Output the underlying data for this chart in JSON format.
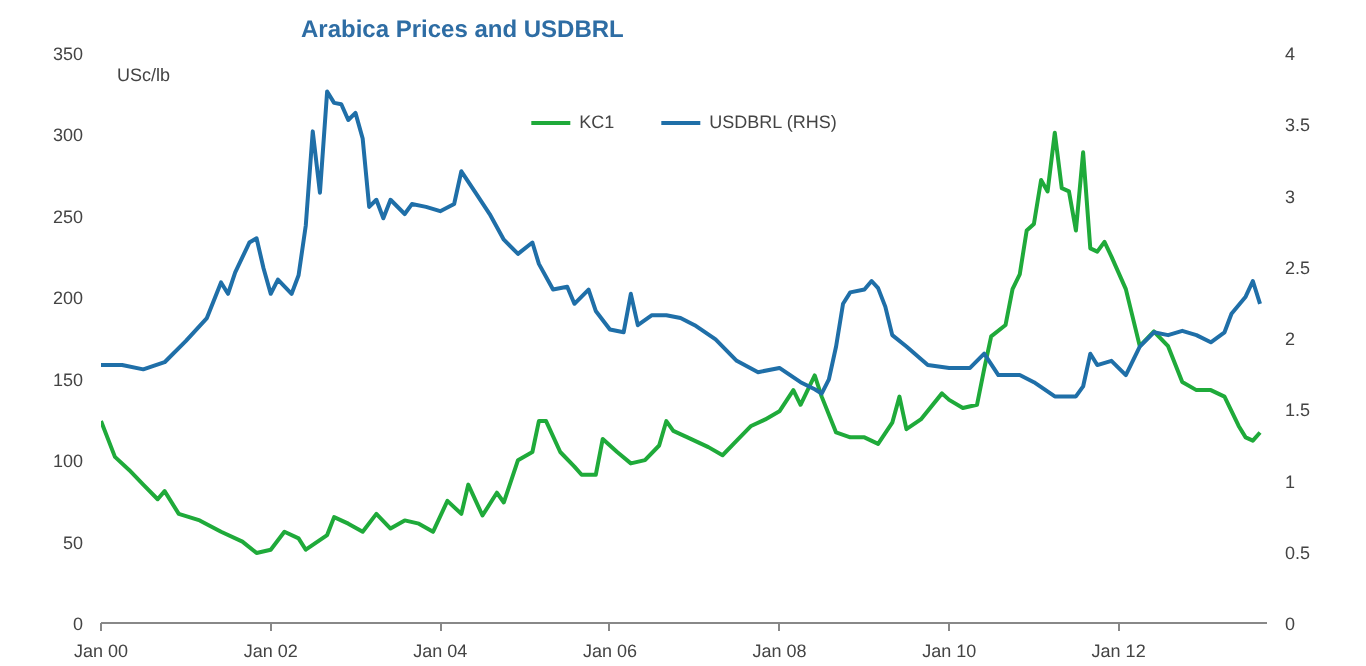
{
  "chart_data": {
    "type": "line",
    "title": "Arabica Prices and USDBRL",
    "ylabel": "USc/lb",
    "xlim": [
      "2000-01",
      "2013-10"
    ],
    "xticks": [
      {
        "value": "2000-01",
        "label": "Jan 00"
      },
      {
        "value": "2002-01",
        "label": "Jan 02"
      },
      {
        "value": "2004-01",
        "label": "Jan 04"
      },
      {
        "value": "2006-01",
        "label": "Jan 06"
      },
      {
        "value": "2008-01",
        "label": "Jan 08"
      },
      {
        "value": "2010-01",
        "label": "Jan 10"
      },
      {
        "value": "2012-01",
        "label": "Jan 12"
      }
    ],
    "ylim": [
      0,
      350
    ],
    "yticks": [
      0,
      50,
      100,
      150,
      200,
      250,
      300,
      350
    ],
    "y2lim": [
      0,
      4
    ],
    "y2ticks": [
      0,
      0.5,
      1,
      1.5,
      2,
      2.5,
      3,
      3.5,
      4
    ],
    "legend": "top",
    "grid": false,
    "marker": "none",
    "line_style": "solid",
    "series": [
      {
        "name": "KC1",
        "color": "#1faa3a",
        "x": [
          "2000-01",
          "2000-03",
          "2000-05",
          "2000-07",
          "2000-09",
          "2000-10",
          "2000-12",
          "2001-03",
          "2001-06",
          "2001-09",
          "2001-11",
          "2002-01",
          "2002-03",
          "2002-05",
          "2002-06",
          "2002-09",
          "2002-10",
          "2002-12",
          "2003-02",
          "2003-04",
          "2003-06",
          "2003-08",
          "2003-10",
          "2003-12",
          "2004-02",
          "2004-04",
          "2004-05",
          "2004-07",
          "2004-09",
          "2004-10",
          "2004-12",
          "2005-02",
          "2005-03",
          "2005-04",
          "2005-06",
          "2005-08",
          "2005-09",
          "2005-11",
          "2005-12",
          "2006-02",
          "2006-04",
          "2006-06",
          "2006-08",
          "2006-09",
          "2006-10",
          "2006-12",
          "2007-03",
          "2007-05",
          "2007-07",
          "2007-09",
          "2007-11",
          "2008-01",
          "2008-03",
          "2008-04",
          "2008-06",
          "2008-07",
          "2008-09",
          "2008-11",
          "2009-01",
          "2009-03",
          "2009-05",
          "2009-06",
          "2009-07",
          "2009-09",
          "2009-12",
          "2010-01",
          "2010-03",
          "2010-05",
          "2010-06",
          "2010-07",
          "2010-09",
          "2010-10",
          "2010-11",
          "2010-12",
          "2011-01",
          "2011-02",
          "2011-03",
          "2011-04",
          "2011-05",
          "2011-06",
          "2011-07",
          "2011-08",
          "2011-09",
          "2011-10",
          "2011-11",
          "2011-12",
          "2012-02",
          "2012-04",
          "2012-06",
          "2012-08",
          "2012-10",
          "2012-12",
          "2013-02",
          "2013-04",
          "2013-06",
          "2013-07",
          "2013-08",
          "2013-09"
        ],
        "values": [
          124,
          102,
          94,
          85,
          76,
          81,
          67,
          63,
          56,
          50,
          43,
          45,
          56,
          52,
          45,
          54,
          65,
          61,
          56,
          67,
          58,
          63,
          61,
          56,
          75,
          67,
          85,
          66,
          80,
          74,
          100,
          105,
          124,
          124,
          105,
          96,
          91,
          91,
          113,
          105,
          98,
          100,
          109,
          124,
          118,
          114,
          108,
          103,
          112,
          121,
          125,
          130,
          143,
          134,
          152,
          139,
          117,
          114,
          114,
          110,
          123,
          139,
          119,
          125,
          141,
          137,
          132,
          134,
          156,
          176,
          183,
          205,
          214,
          241,
          245,
          272,
          265,
          301,
          267,
          265,
          241,
          289,
          230,
          228,
          234,
          225,
          205,
          170,
          179,
          170,
          148,
          143,
          143,
          139,
          121,
          114,
          112,
          117
        ]
      },
      {
        "name": "USDBRL (RHS)",
        "color": "#1f6fa8",
        "axis": "y2",
        "x": [
          "2000-01",
          "2000-04",
          "2000-07",
          "2000-10",
          "2001-01",
          "2001-04",
          "2001-06",
          "2001-07",
          "2001-08",
          "2001-10",
          "2001-11",
          "2001-12",
          "2002-01",
          "2002-02",
          "2002-04",
          "2002-05",
          "2002-06",
          "2002-07",
          "2002-08",
          "2002-09",
          "2002-10",
          "2002-11",
          "2002-12",
          "2003-01",
          "2003-02",
          "2003-03",
          "2003-04",
          "2003-05",
          "2003-06",
          "2003-08",
          "2003-09",
          "2003-11",
          "2004-01",
          "2004-03",
          "2004-04",
          "2004-06",
          "2004-08",
          "2004-10",
          "2004-12",
          "2005-02",
          "2005-03",
          "2005-05",
          "2005-07",
          "2005-08",
          "2005-10",
          "2005-11",
          "2006-01",
          "2006-03",
          "2006-04",
          "2006-05",
          "2006-07",
          "2006-09",
          "2006-11",
          "2007-01",
          "2007-04",
          "2007-07",
          "2007-10",
          "2008-01",
          "2008-04",
          "2008-06",
          "2008-07",
          "2008-08",
          "2008-09",
          "2008-10",
          "2008-11",
          "2009-01",
          "2009-02",
          "2009-03",
          "2009-04",
          "2009-05",
          "2009-07",
          "2009-10",
          "2010-01",
          "2010-04",
          "2010-06",
          "2010-08",
          "2010-11",
          "2011-01",
          "2011-04",
          "2011-07",
          "2011-08",
          "2011-09",
          "2011-10",
          "2011-12",
          "2012-02",
          "2012-04",
          "2012-06",
          "2012-08",
          "2012-10",
          "2012-12",
          "2013-02",
          "2013-04",
          "2013-05",
          "2013-07",
          "2013-08",
          "2013-09"
        ],
        "values": [
          1.81,
          1.81,
          1.78,
          1.83,
          1.98,
          2.14,
          2.39,
          2.31,
          2.46,
          2.67,
          2.7,
          2.49,
          2.31,
          2.41,
          2.31,
          2.44,
          2.79,
          3.45,
          3.02,
          3.73,
          3.65,
          3.64,
          3.53,
          3.58,
          3.4,
          2.92,
          2.97,
          2.84,
          2.97,
          2.87,
          2.94,
          2.92,
          2.89,
          2.94,
          3.17,
          3.02,
          2.87,
          2.69,
          2.59,
          2.67,
          2.52,
          2.34,
          2.36,
          2.24,
          2.34,
          2.19,
          2.06,
          2.04,
          2.31,
          2.09,
          2.16,
          2.16,
          2.14,
          2.09,
          1.99,
          1.84,
          1.76,
          1.79,
          1.69,
          1.64,
          1.61,
          1.71,
          1.94,
          2.24,
          2.32,
          2.34,
          2.4,
          2.35,
          2.22,
          2.02,
          1.94,
          1.81,
          1.79,
          1.79,
          1.89,
          1.74,
          1.74,
          1.69,
          1.59,
          1.59,
          1.66,
          1.89,
          1.81,
          1.84,
          1.74,
          1.94,
          2.04,
          2.02,
          2.05,
          2.02,
          1.97,
          2.04,
          2.17,
          2.29,
          2.4,
          2.24
        ]
      }
    ]
  }
}
